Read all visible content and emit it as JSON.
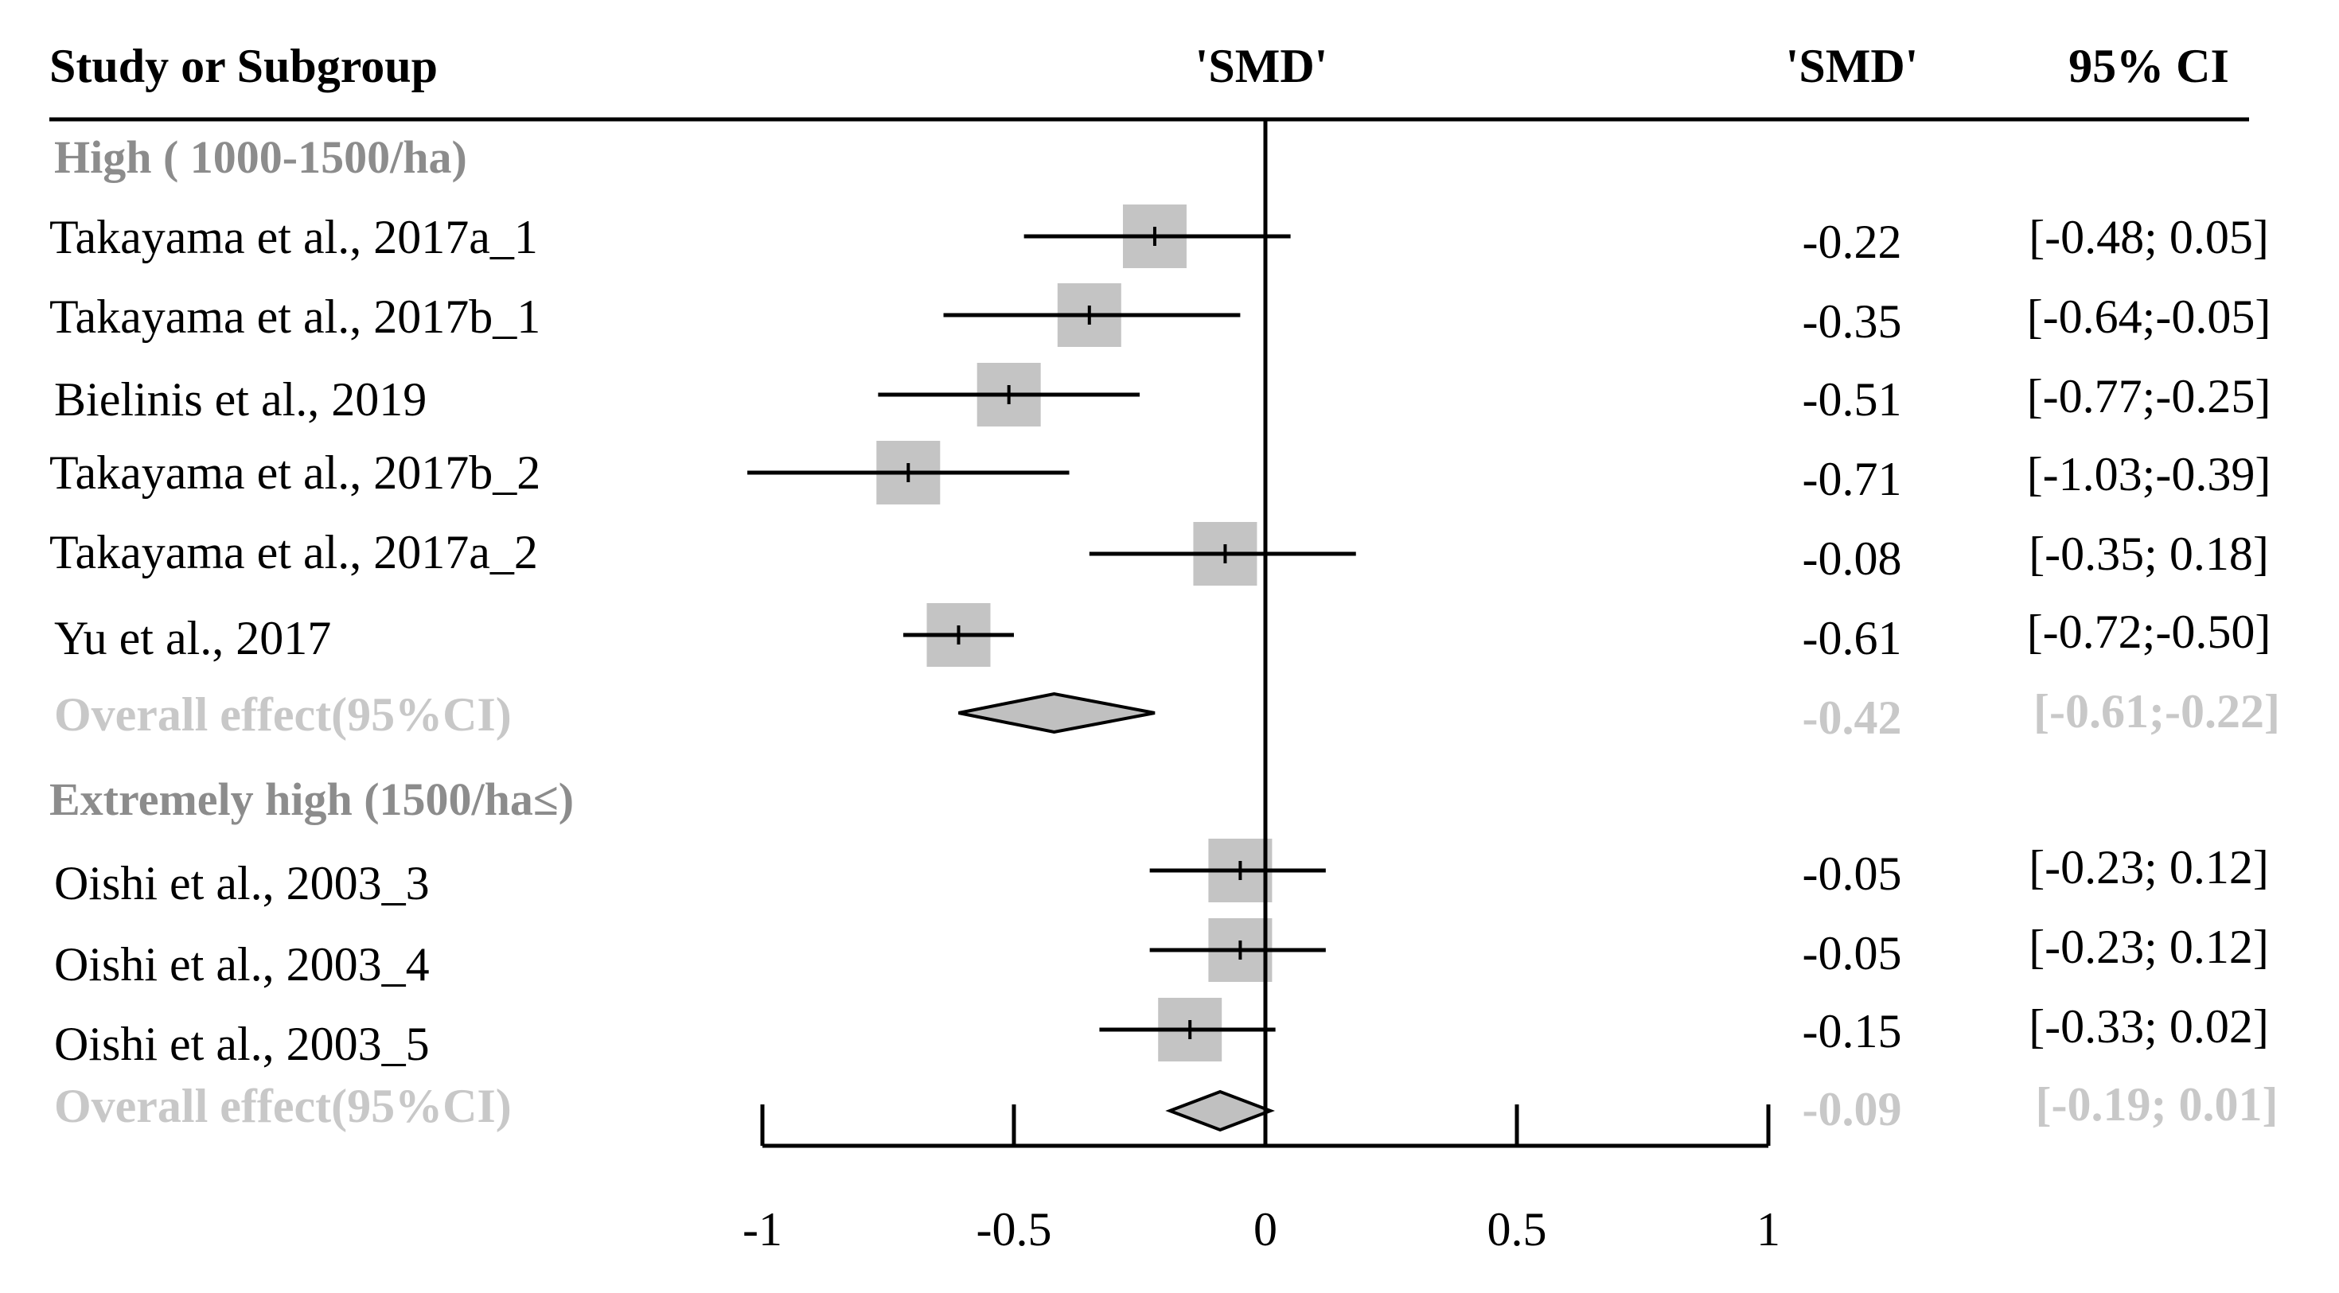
{
  "chart_data": {
    "type": "forest",
    "headers": {
      "study": "Study or Subgroup",
      "plot": "'SMD'",
      "smd": "'SMD'",
      "ci": "95% CI"
    },
    "xlim": [
      -1,
      1
    ],
    "x_ticks": [
      {
        "value": -1,
        "label": "-1"
      },
      {
        "value": -0.5,
        "label": "-0.5"
      },
      {
        "value": 0,
        "label": "0"
      },
      {
        "value": 0.5,
        "label": "0.5"
      },
      {
        "value": 1,
        "label": "1"
      }
    ],
    "colors": {
      "box": "#c4c4c4",
      "diamond": "#c0c0c0",
      "group_label": "#8c8c8c",
      "overall_text": "#c8c8c8"
    },
    "groups": [
      {
        "label": "High ( 1000-1500/ha)",
        "studies": [
          {
            "name": "Takayama et al., 2017a_1",
            "smd": -0.22,
            "lower": -0.48,
            "upper": 0.05,
            "smd_text": "-0.22",
            "ci_text": "[-0.48; 0.05]"
          },
          {
            "name": "Takayama et al., 2017b_1",
            "smd": -0.35,
            "lower": -0.64,
            "upper": -0.05,
            "smd_text": "-0.35",
            "ci_text": "[-0.64;-0.05]"
          },
          {
            "name": "Bielinis et al., 2019",
            "smd": -0.51,
            "lower": -0.77,
            "upper": -0.25,
            "smd_text": "-0.51",
            "ci_text": "[-0.77;-0.25]"
          },
          {
            "name": "Takayama et al., 2017b_2",
            "smd": -0.71,
            "lower": -1.03,
            "upper": -0.39,
            "smd_text": "-0.71",
            "ci_text": "[-1.03;-0.39]"
          },
          {
            "name": "Takayama et al., 2017a_2",
            "smd": -0.08,
            "lower": -0.35,
            "upper": 0.18,
            "smd_text": "-0.08",
            "ci_text": "[-0.35; 0.18]"
          },
          {
            "name": "Yu  et al., 2017",
            "smd": -0.61,
            "lower": -0.72,
            "upper": -0.5,
            "smd_text": "-0.61",
            "ci_text": "[-0.72;-0.50]"
          }
        ],
        "overall": {
          "label": "Overall effect(95%CI)",
          "smd": -0.42,
          "lower": -0.61,
          "upper": -0.22,
          "smd_text": "-0.42",
          "ci_text": "[-0.61;-0.22]"
        }
      },
      {
        "label": "Extremely high (1500/ha≤)",
        "studies": [
          {
            "name": "Oishi et al., 2003_3",
            "smd": -0.05,
            "lower": -0.23,
            "upper": 0.12,
            "smd_text": "-0.05",
            "ci_text": "[-0.23; 0.12]"
          },
          {
            "name": "Oishi et al., 2003_4",
            "smd": -0.05,
            "lower": -0.23,
            "upper": 0.12,
            "smd_text": "-0.05",
            "ci_text": "[-0.23; 0.12]"
          },
          {
            "name": "Oishi et al., 2003_5",
            "smd": -0.15,
            "lower": -0.33,
            "upper": 0.02,
            "smd_text": "-0.15",
            "ci_text": "[-0.33; 0.02]"
          }
        ],
        "overall": {
          "label": "Overall effect(95%CI)",
          "smd": -0.09,
          "lower": -0.19,
          "upper": 0.01,
          "smd_text": "-0.09",
          "ci_text": "[-0.19; 0.01]"
        }
      }
    ]
  }
}
